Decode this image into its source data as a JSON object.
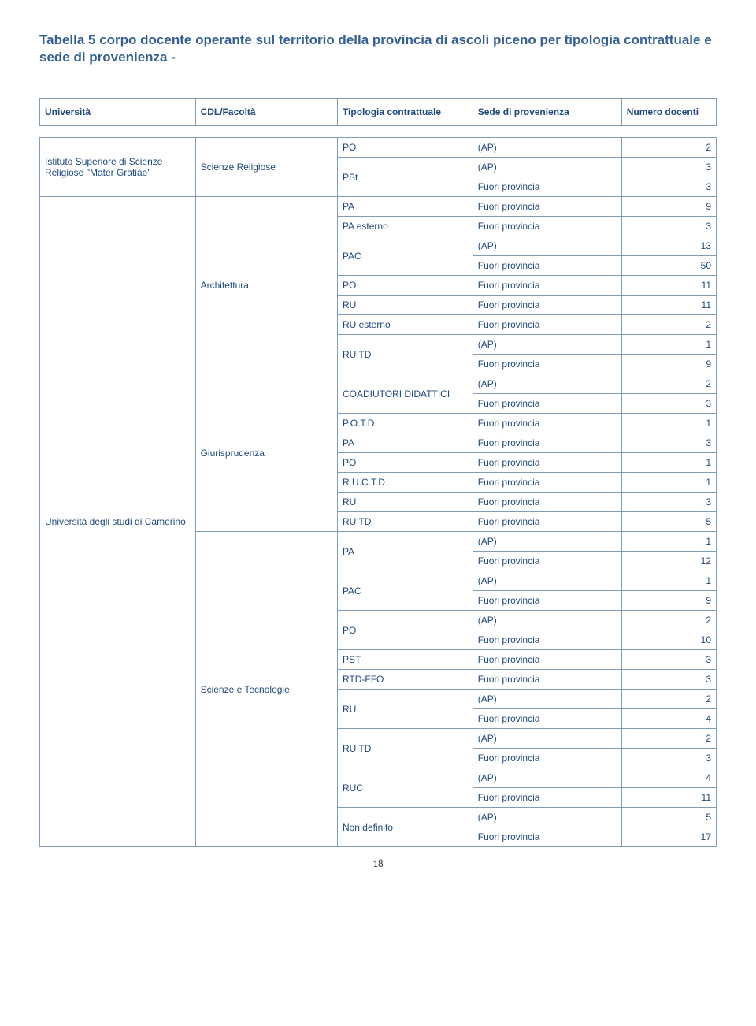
{
  "title": "Tabella 5 corpo docente operante sul territorio della provincia di ascoli piceno per tipologia contrattuale e sede di provenienza -",
  "headers": {
    "h1": "Università",
    "h2": "CDL/Facoltà",
    "h3": "Tipologia contrattuale",
    "h4": "Sede di provenienza",
    "h5": "Numero docenti"
  },
  "univ1": "Istituto Superiore di Scienze Religiose \"Mater Gratiae\"",
  "univ2": "Università degli studi di Camerino",
  "fac1": "Scienze Religiose",
  "fac2": "Architettura",
  "fac3": "Giurisprudenza",
  "fac4": "Scienze e Tecnologie",
  "r": {
    "t1": "PO",
    "s1": "(AP)",
    "n1": "2",
    "t2": "PSt",
    "s2": "(AP)",
    "n2": "3",
    "s3": "Fuori provincia",
    "n3": "3",
    "t4": "PA",
    "s4": "Fuori provincia",
    "n4": "9",
    "t5": "PA esterno",
    "s5": "Fuori provincia",
    "n5": "3",
    "t6": "PAC",
    "s6": "(AP)",
    "n6": "13",
    "s7": "Fuori provincia",
    "n7": "50",
    "t8": "PO",
    "s8": "Fuori provincia",
    "n8": "11",
    "t9": "RU",
    "s9": "Fuori provincia",
    "n9": "11",
    "t10": "RU esterno",
    "s10": "Fuori provincia",
    "n10": "2",
    "t11": "RU TD",
    "s11": "(AP)",
    "n11": "1",
    "s12": "Fuori provincia",
    "n12": "9",
    "t13": "COADIUTORI DIDATTICI",
    "s13": "(AP)",
    "n13": "2",
    "s14": "Fuori provincia",
    "n14": "3",
    "t15": "P.O.T.D.",
    "s15": "Fuori provincia",
    "n15": "1",
    "t16": "PA",
    "s16": "Fuori provincia",
    "n16": "3",
    "t17": "PO",
    "s17": "Fuori provincia",
    "n17": "1",
    "t18": "R.U.C.T.D.",
    "s18": "Fuori provincia",
    "n18": "1",
    "t19": "RU",
    "s19": "Fuori provincia",
    "n19": "3",
    "t20": "RU TD",
    "s20": "Fuori provincia",
    "n20": "5",
    "t21": "PA",
    "s21": "(AP)",
    "n21": "1",
    "s22": "Fuori provincia",
    "n22": "12",
    "t23": "PAC",
    "s23": "(AP)",
    "n23": "1",
    "s24": "Fuori provincia",
    "n24": "9",
    "t25": "PO",
    "s25": "(AP)",
    "n25": "2",
    "s26": "Fuori provincia",
    "n26": "10",
    "t27": "PST",
    "s27": "Fuori provincia",
    "n27": "3",
    "t28": "RTD-FFO",
    "s28": "Fuori provincia",
    "n28": "3",
    "t29": "RU",
    "s29": "(AP)",
    "n29": "2",
    "s30": "Fuori provincia",
    "n30": "4",
    "t31": "RU TD",
    "s31": "(AP)",
    "n31": "2",
    "s32": "Fuori provincia",
    "n32": "3",
    "t33": "RUC",
    "s33": "(AP)",
    "n33": "4",
    "s34": "Fuori provincia",
    "n34": "11",
    "t35": "Non definito",
    "s35": "(AP)",
    "n35": "5",
    "s36": "Fuori provincia",
    "n36": "17"
  },
  "pageno": "18"
}
